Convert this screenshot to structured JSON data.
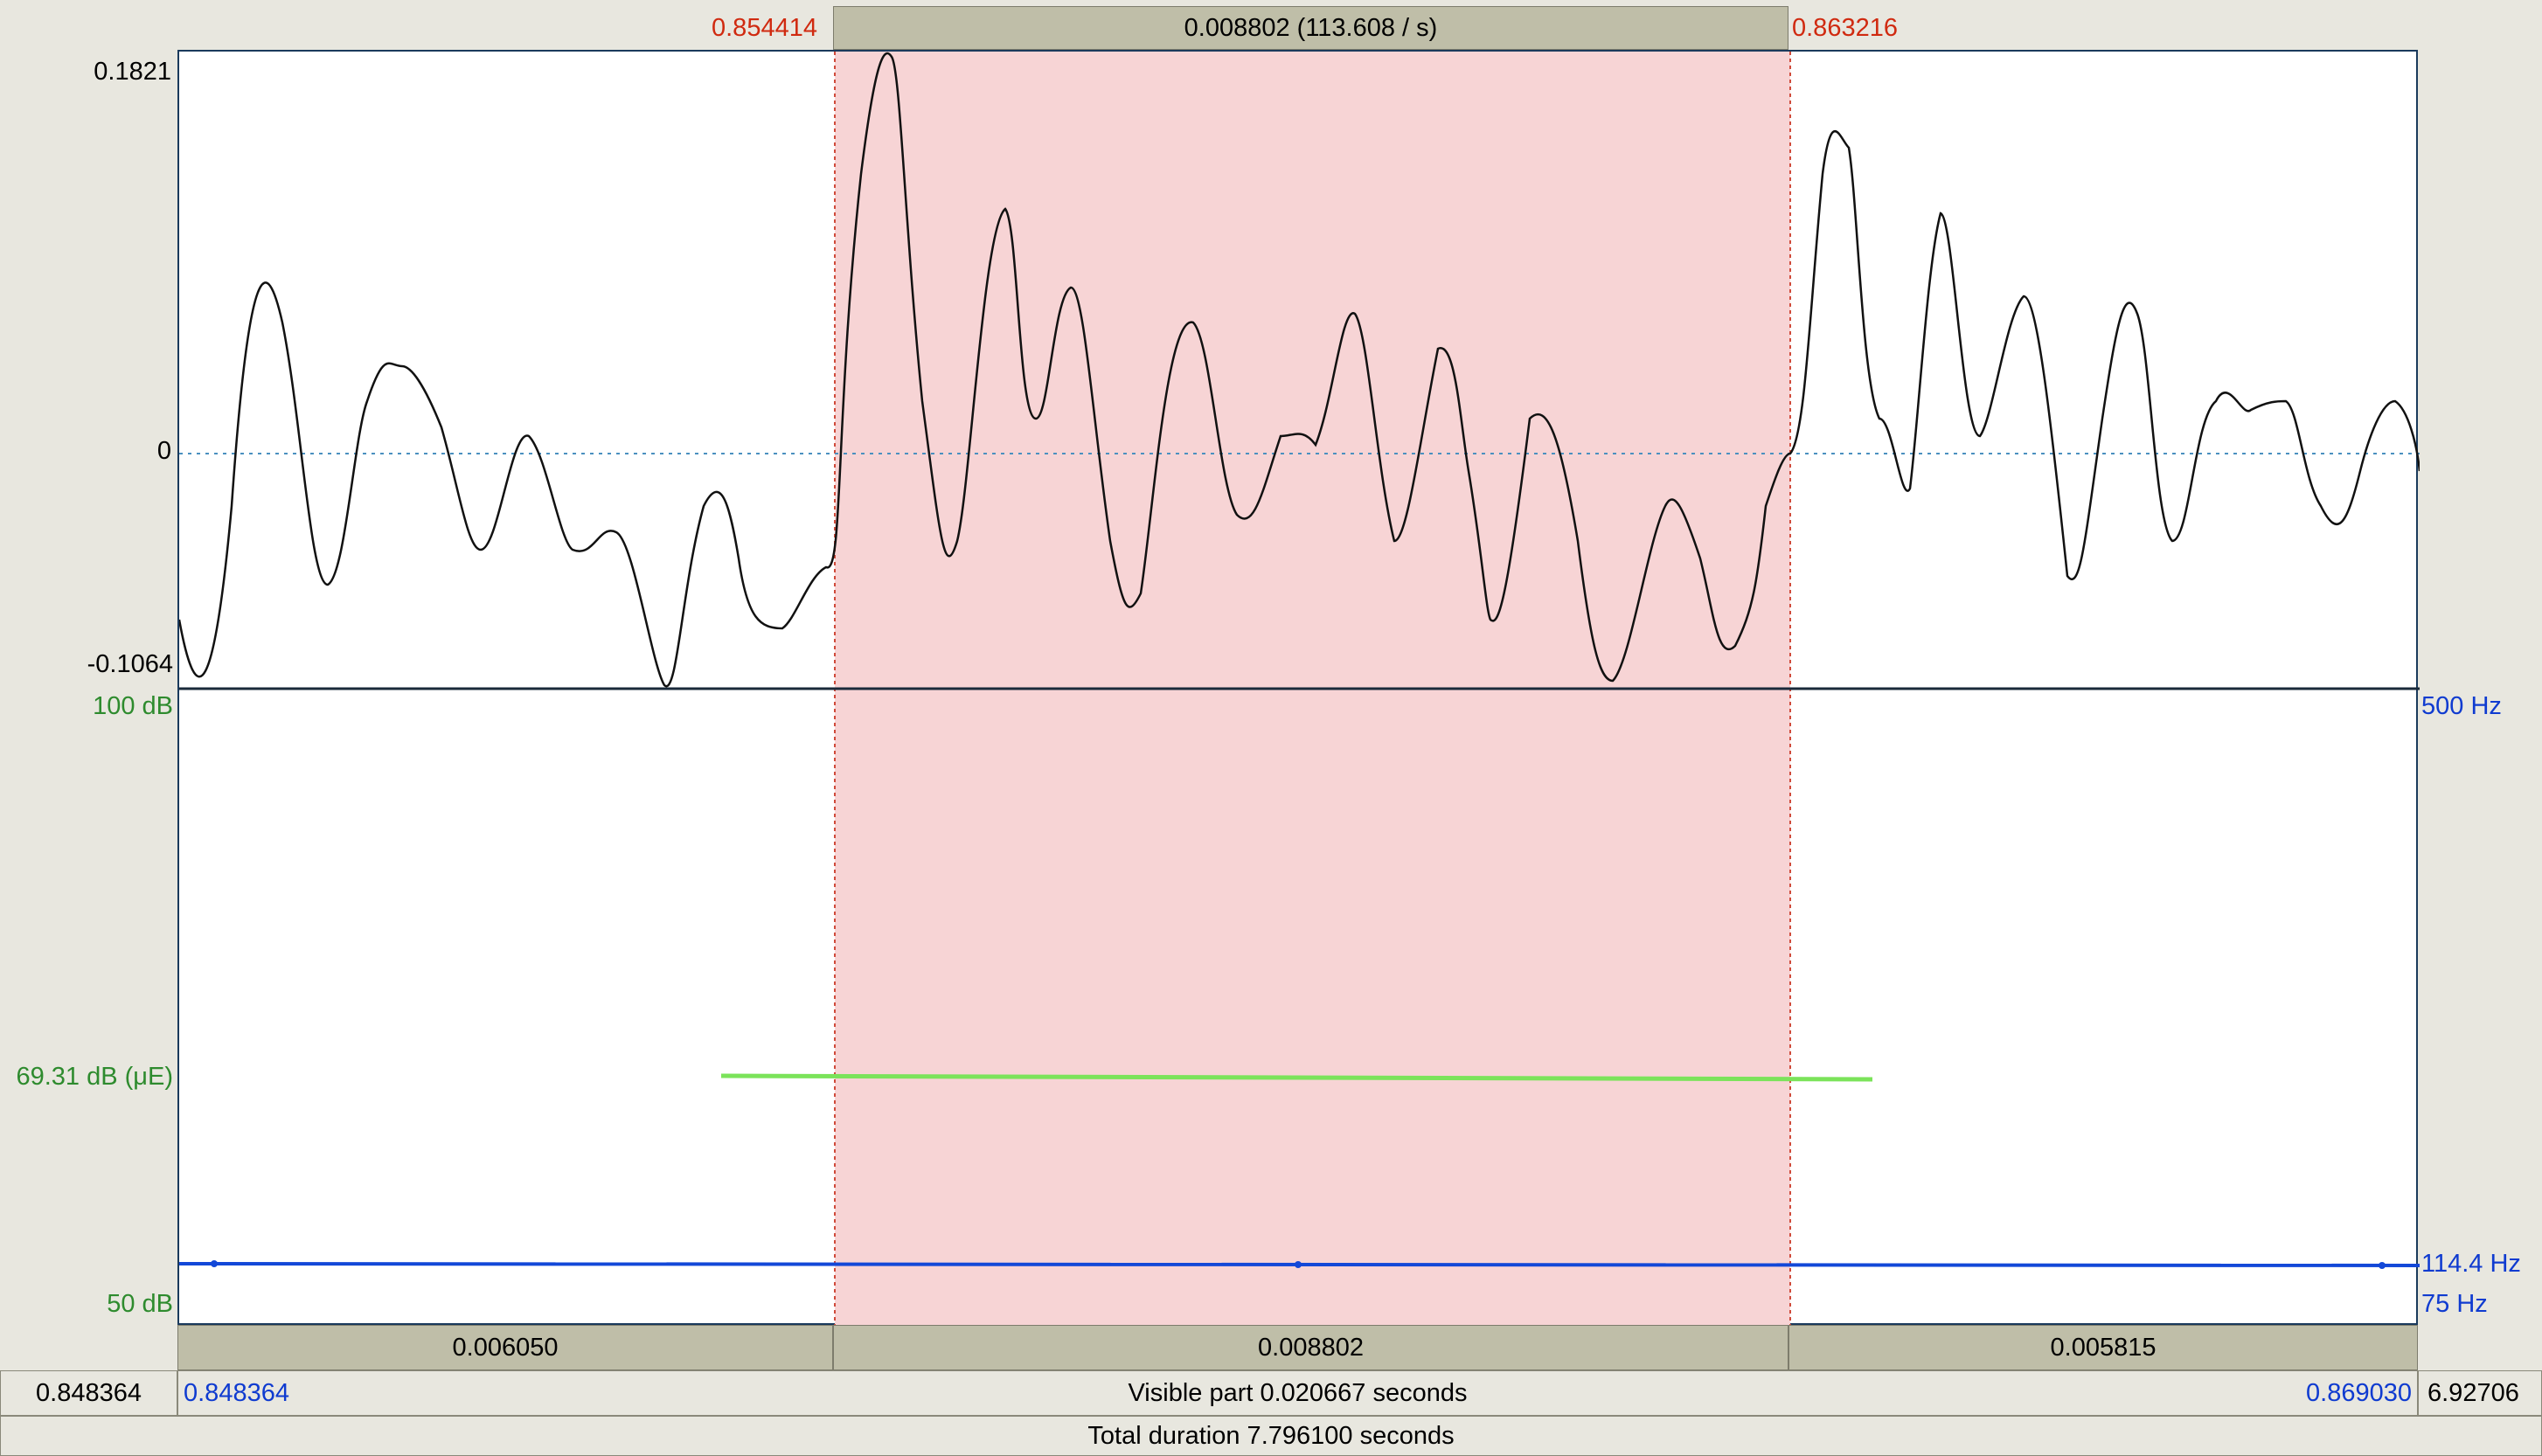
{
  "selection": {
    "start": "0.854414",
    "end": "0.863216",
    "duration_label": "0.008802 (113.608 / s)"
  },
  "waveform": {
    "y_max": "0.1821",
    "y_zero": "0",
    "y_min": "-0.1064"
  },
  "analysis": {
    "intensity_max": "100 dB",
    "intensity_value": "69.31 dB (μE)",
    "intensity_min": "50 dB",
    "pitch_max": "500 Hz",
    "pitch_value": "114.4 Hz",
    "pitch_min": "75 Hz"
  },
  "intervals": {
    "left": "0.006050",
    "middle": "0.008802",
    "right": "0.005815"
  },
  "window": {
    "left_total": "0.848364",
    "visible_start": "0.848364",
    "visible_label": "Visible part 0.020667 seconds",
    "visible_end": "0.869030",
    "right_total": "6.92706",
    "total_label": "Total duration 7.796100 seconds"
  },
  "colors": {
    "selection_fill": "#f7d4d5",
    "selection_line": "#d04a3a",
    "intensity_line": "#7be35a",
    "pitch_line": "#1348d8",
    "waveform": "#111111"
  }
}
